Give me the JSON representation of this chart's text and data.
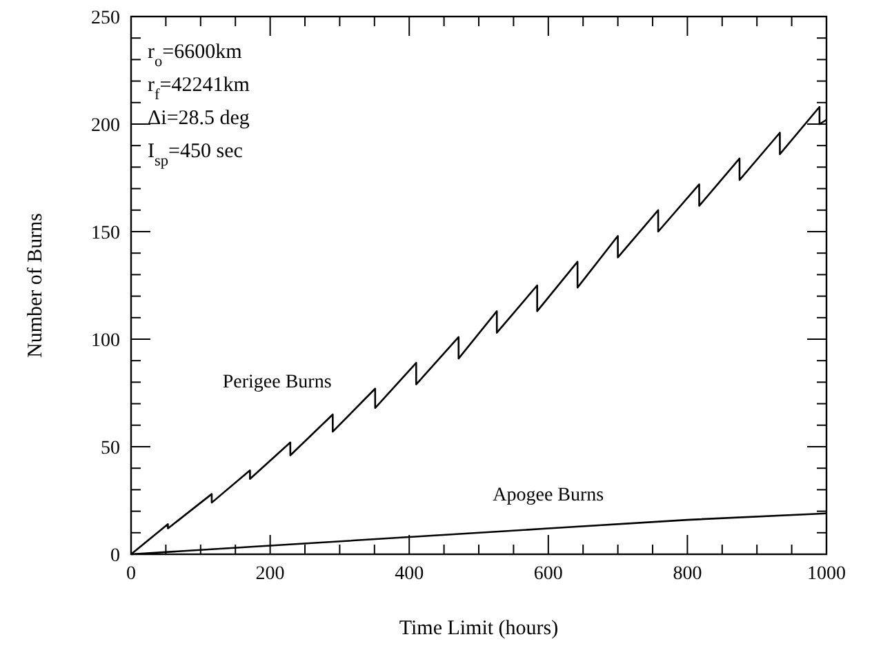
{
  "chart_data": {
    "type": "line",
    "xlabel": "Time Limit (hours)",
    "ylabel": "Number of Burns",
    "xlim": [
      0,
      1000
    ],
    "ylim": [
      0,
      250
    ],
    "xticks": [
      0,
      {
        "value": 50,
        "label": null
      },
      {
        "value": 100,
        "label": null
      },
      {
        "value": 150,
        "label": null
      },
      200,
      {
        "value": 250,
        "label": null
      },
      {
        "value": 300,
        "label": null
      },
      {
        "value": 350,
        "label": null
      },
      400,
      {
        "value": 450,
        "label": null
      },
      {
        "value": 500,
        "label": null
      },
      {
        "value": 550,
        "label": null
      },
      600,
      {
        "value": 650,
        "label": null
      },
      {
        "value": 700,
        "label": null
      },
      {
        "value": 750,
        "label": null
      },
      800,
      {
        "value": 850,
        "label": null
      },
      {
        "value": 900,
        "label": null
      },
      {
        "value": 950,
        "label": null
      },
      1000
    ],
    "yticks": [
      0,
      {
        "value": 10,
        "label": null
      },
      {
        "value": 20,
        "label": null
      },
      {
        "value": 30,
        "label": null
      },
      {
        "value": 40,
        "label": null
      },
      50,
      {
        "value": 60,
        "label": null
      },
      {
        "value": 70,
        "label": null
      },
      {
        "value": 80,
        "label": null
      },
      {
        "value": 90,
        "label": null
      },
      100,
      {
        "value": 110,
        "label": null
      },
      {
        "value": 120,
        "label": null
      },
      {
        "value": 130,
        "label": null
      },
      {
        "value": 140,
        "label": null
      },
      150,
      {
        "value": 160,
        "label": null
      },
      {
        "value": 170,
        "label": null
      },
      {
        "value": 180,
        "label": null
      },
      {
        "value": 190,
        "label": null
      },
      200,
      {
        "value": 210,
        "label": null
      },
      {
        "value": 220,
        "label": null
      },
      {
        "value": 230,
        "label": null
      },
      {
        "value": 240,
        "label": null
      },
      250
    ],
    "grid": false,
    "marker": "none",
    "line_style": "solid",
    "series": [
      {
        "name": "Perigee Burns",
        "color": "#000000",
        "x": [
          0,
          53,
          53,
          116,
          116,
          171,
          171,
          229,
          229,
          290,
          290,
          351,
          351,
          410,
          410,
          471,
          471,
          526,
          526,
          584,
          584,
          642,
          642,
          700,
          700,
          758,
          758,
          817,
          817,
          875,
          875,
          933,
          933,
          990,
          990,
          1000
        ],
        "values": [
          0,
          14,
          12,
          28,
          24,
          39,
          35,
          52,
          46,
          65,
          57,
          77,
          68,
          89,
          79,
          101,
          91,
          113,
          103,
          125,
          113,
          136,
          124,
          148,
          138,
          160,
          150,
          172,
          162,
          184,
          174,
          196,
          186,
          208,
          200,
          202
        ]
      },
      {
        "name": "Apogee Burns",
        "color": "#000000",
        "x": [
          0,
          200,
          400,
          600,
          800,
          1000
        ],
        "values": [
          0,
          4,
          8,
          12,
          16,
          19
        ]
      }
    ],
    "annotations": [
      "r$_{o}$=6600km",
      "r$_{f}$=42241km",
      "Δi=28.5 deg",
      "I$_{sp}$=450 sec"
    ]
  }
}
